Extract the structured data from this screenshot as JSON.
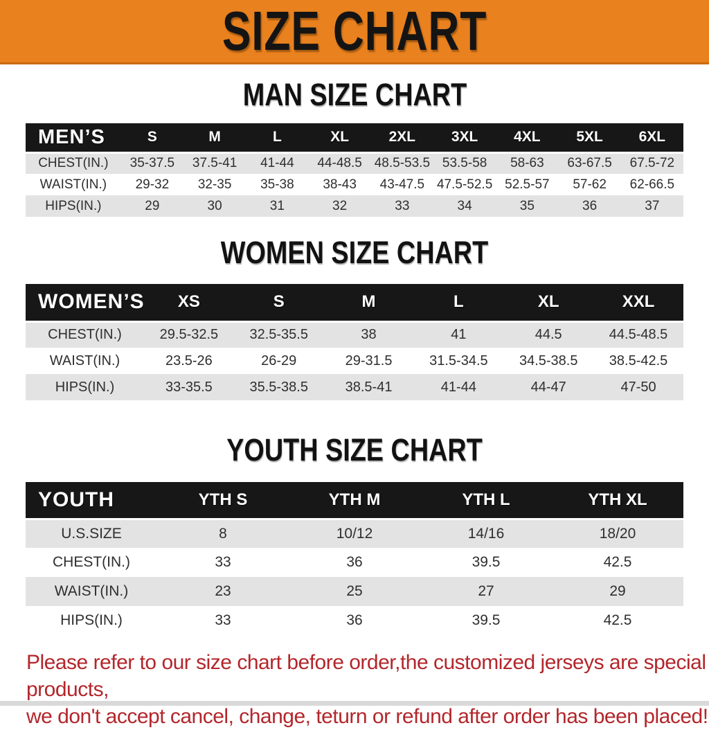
{
  "banner": {
    "title": "SIZE CHART"
  },
  "colors": {
    "banner_bg": "#E8811E",
    "banner_edge": "#C96A10",
    "header_bar": "#171717",
    "stripe": "#E3E3E3",
    "footer_text": "#B3262B"
  },
  "sections": [
    {
      "heading": "MAN SIZE CHART",
      "table": {
        "header": [
          "MEN’S",
          "S",
          "M",
          "L",
          "XL",
          "2XL",
          "3XL",
          "4XL",
          "5XL",
          "6XL"
        ],
        "rows": [
          {
            "label": "CHEST(IN.)",
            "values": [
              "35-37.5",
              "37.5-41",
              "41-44",
              "44-48.5",
              "48.5-53.5",
              "53.5-58",
              "58-63",
              "63-67.5",
              "67.5-72"
            ]
          },
          {
            "label": "WAIST(IN.)",
            "values": [
              "29-32",
              "32-35",
              "35-38",
              "38-43",
              "43-47.5",
              "47.5-52.5",
              "52.5-57",
              "57-62",
              "62-66.5"
            ]
          },
          {
            "label": "HIPS(IN.)",
            "values": [
              "29",
              "30",
              "31",
              "32",
              "33",
              "34",
              "35",
              "36",
              "37"
            ]
          }
        ]
      }
    },
    {
      "heading": "WOMEN SIZE CHART",
      "table": {
        "header": [
          "WOMEN’S",
          "XS",
          "S",
          "M",
          "L",
          "XL",
          "XXL"
        ],
        "rows": [
          {
            "label": "CHEST(IN.)",
            "values": [
              "29.5-32.5",
              "32.5-35.5",
              "38",
              "41",
              "44.5",
              "44.5-48.5"
            ]
          },
          {
            "label": "WAIST(IN.)",
            "values": [
              "23.5-26",
              "26-29",
              "29-31.5",
              "31.5-34.5",
              "34.5-38.5",
              "38.5-42.5"
            ]
          },
          {
            "label": "HIPS(IN.)",
            "values": [
              "33-35.5",
              "35.5-38.5",
              "38.5-41",
              "41-44",
              "44-47",
              "47-50"
            ]
          }
        ]
      }
    },
    {
      "heading": "YOUTH SIZE CHART",
      "table": {
        "header": [
          "YOUTH",
          "YTH S",
          "YTH M",
          "YTH L",
          "YTH XL"
        ],
        "rows": [
          {
            "label": "U.S.SIZE",
            "values": [
              "8",
              "10/12",
              "14/16",
              "18/20"
            ]
          },
          {
            "label": "CHEST(IN.)",
            "values": [
              "33",
              "36",
              "39.5",
              "42.5"
            ]
          },
          {
            "label": "WAIST(IN.)",
            "values": [
              "23",
              "25",
              "27",
              "29"
            ]
          },
          {
            "label": "HIPS(IN.)",
            "values": [
              "33",
              "36",
              "39.5",
              "42.5"
            ]
          }
        ]
      }
    }
  ],
  "footer": {
    "lines": [
      "Please refer to our size chart before order,the customized jerseys are special products,",
      "we don't accept cancel, change, teturn or refund after order has been placed!"
    ]
  }
}
